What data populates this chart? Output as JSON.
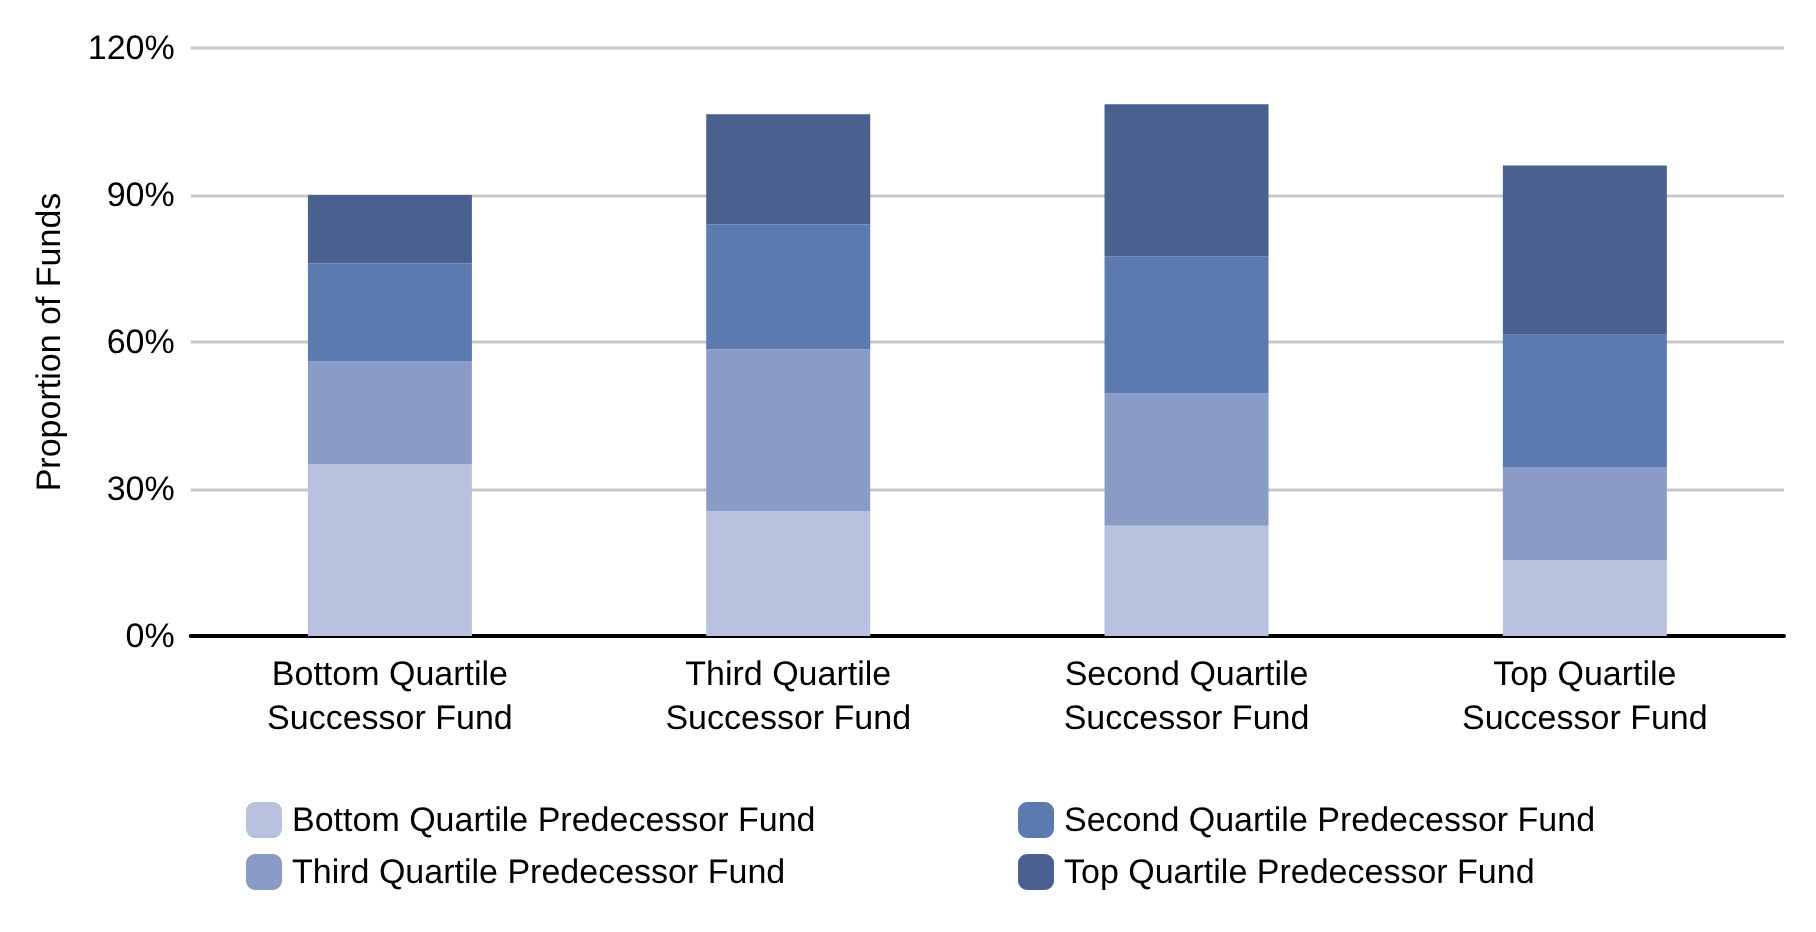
{
  "chart_data": {
    "type": "bar",
    "stacked": true,
    "ylabel": "Proportion of Funds",
    "categories": [
      "Bottom Quartile\nSuccessor Fund",
      "Third Quartile\nSuccessor Fund",
      "Second Quartile\nSuccessor Fund",
      "Top Quartile\nSuccessor Fund"
    ],
    "series": [
      {
        "name": "Bottom Quartile Predecessor Fund",
        "color": "#b8c1dd",
        "values": [
          35,
          25.5,
          22.5,
          15.5
        ]
      },
      {
        "name": "Third Quartile Predecessor Fund",
        "color": "#8a9bc8",
        "values": [
          21,
          33,
          27,
          19
        ]
      },
      {
        "name": "Second Quartile Predecessor Fund",
        "color": "#5a7ab0",
        "values": [
          20,
          25.5,
          28,
          27
        ]
      },
      {
        "name": "Top Quartile Predecessor Fund",
        "color": "#4a6190",
        "values": [
          14,
          22.5,
          31,
          34.5
        ]
      }
    ],
    "ylim": [
      0,
      120
    ],
    "yticks": [
      {
        "value": 0,
        "label": "0%"
      },
      {
        "value": 30,
        "label": "30%"
      },
      {
        "value": 60,
        "label": "60%"
      },
      {
        "value": 90,
        "label": "90%"
      },
      {
        "value": 120,
        "label": "120%"
      }
    ],
    "grid": "y",
    "legend": "bottom"
  }
}
